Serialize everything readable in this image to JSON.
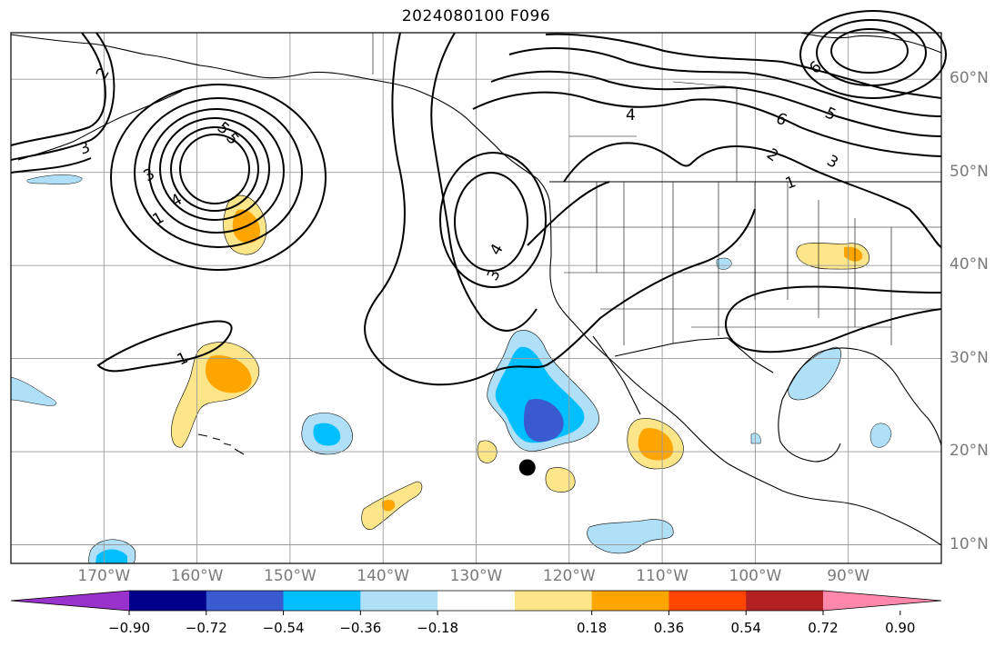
{
  "title": "2024080100 F096",
  "map": {
    "longitude_labels": [
      {
        "text": "170°W",
        "lon": -170
      },
      {
        "text": "160°W",
        "lon": -160
      },
      {
        "text": "150°W",
        "lon": -150
      },
      {
        "text": "140°W",
        "lon": -140
      },
      {
        "text": "130°W",
        "lon": -130
      },
      {
        "text": "120°W",
        "lon": -120
      },
      {
        "text": "110°W",
        "lon": -110
      },
      {
        "text": "100°W",
        "lon": -100
      },
      {
        "text": "90°W",
        "lon": -90
      }
    ],
    "latitude_labels": [
      {
        "text": "60°N",
        "lat": 60
      },
      {
        "text": "50°N",
        "lat": 50
      },
      {
        "text": "40°N",
        "lat": 40
      },
      {
        "text": "30°N",
        "lat": 30
      },
      {
        "text": "20°N",
        "lat": 20
      },
      {
        "text": "10°N",
        "lat": 10
      }
    ],
    "lon_range": [
      -180,
      -80
    ],
    "lat_range": [
      8,
      65
    ],
    "contour_labels": [
      "1",
      "2",
      "3",
      "4",
      "5",
      "6"
    ],
    "marker": {
      "lon": -124.5,
      "lat": 18.3
    }
  },
  "colorbar": {
    "tick_labels": [
      "−0.90",
      "−0.72",
      "−0.54",
      "−0.36",
      "−0.18",
      "0.18",
      "0.36",
      "0.54",
      "0.72",
      "0.90"
    ],
    "colors": [
      "#9932cc",
      "#00008b",
      "#3a5bd0",
      "#00bfff",
      "#b0e0f8",
      "#ffffff",
      "#fde68a",
      "#ffa500",
      "#ff4500",
      "#b22222",
      "#ff88aa"
    ]
  }
}
